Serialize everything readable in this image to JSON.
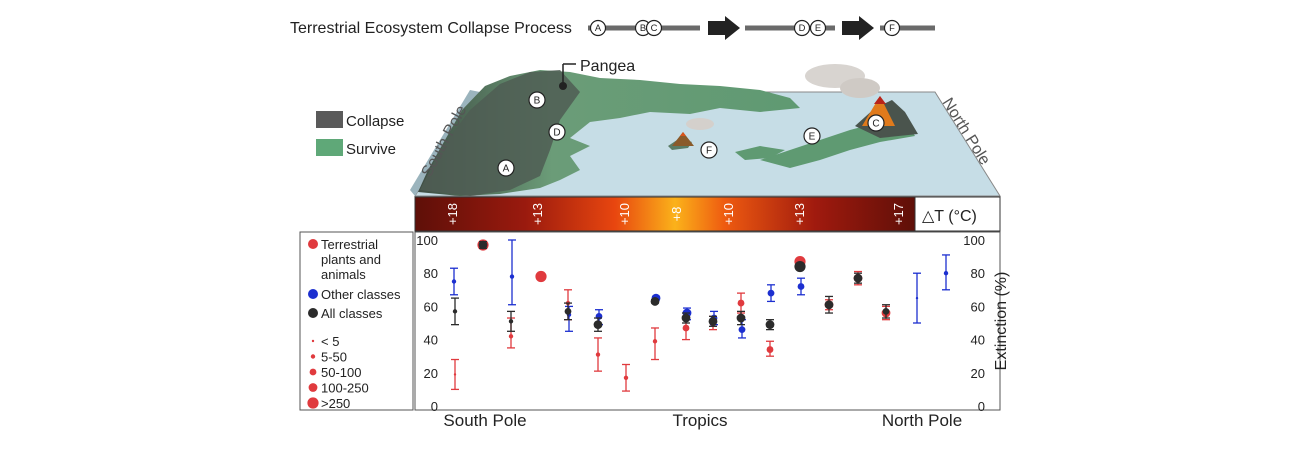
{
  "process": {
    "title": "Terrestrial Ecosystem Collapse Process",
    "stages": [
      {
        "labels": [
          "A"
        ]
      },
      {
        "labels": [
          "B",
          "C"
        ]
      },
      {
        "labels": [
          "D",
          "E"
        ]
      },
      {
        "labels": [
          "F"
        ]
      }
    ]
  },
  "map": {
    "pangea_label": "Pangea",
    "south_pole_label": "South Pole",
    "north_pole_label": "North Pole",
    "markers": [
      "A",
      "B",
      "C",
      "D",
      "E",
      "F"
    ],
    "legend": [
      {
        "label": "Collapse",
        "color": "#5a5a5a"
      },
      {
        "label": "Survive",
        "color": "#5fa878"
      }
    ],
    "colors": {
      "ocean": "#c6dde6",
      "land": "#6a9a78",
      "collapse_land": "#4d5b52"
    }
  },
  "temperature_bar": {
    "unit_label": "△T (°C)",
    "ticks": [
      "+18",
      "+13",
      "+10",
      "+8",
      "+10",
      "+13",
      "+17"
    ]
  },
  "chart_data": {
    "type": "scatter",
    "ylabel": "Extinction (%)",
    "ylim": [
      0,
      100
    ],
    "y_ticks": [
      0,
      20,
      40,
      60,
      80,
      100
    ],
    "x_ticks": [
      "South Pole",
      "Tropics",
      "North Pole"
    ],
    "grid": false,
    "legend_position": "left",
    "size_legend": [
      "< 5",
      "5-50",
      "50-100",
      "100-250",
      ">250"
    ],
    "series": [
      {
        "name": "Terrestrial plants and animals",
        "color": "#e03a3e",
        "points": [
          {
            "x": 1,
            "y": 19,
            "lo": 10,
            "hi": 28,
            "size": "< 5"
          },
          {
            "x": 2,
            "y": 97,
            "lo": 96,
            "hi": 98,
            "size": ">250"
          },
          {
            "x": 3,
            "y": 42,
            "lo": 35,
            "hi": 53,
            "size": "5-50"
          },
          {
            "x": 4,
            "y": 78,
            "lo": 77,
            "hi": 79,
            "size": ">250"
          },
          {
            "x": 5,
            "y": 62,
            "lo": 52,
            "hi": 70,
            "size": "5-50"
          },
          {
            "x": 6,
            "y": 31,
            "lo": 21,
            "hi": 41,
            "size": "5-50"
          },
          {
            "x": 7,
            "y": 17,
            "lo": 9,
            "hi": 25,
            "size": "5-50"
          },
          {
            "x": 8,
            "y": 39,
            "lo": 28,
            "hi": 47,
            "size": "5-50"
          },
          {
            "x": 9,
            "y": 47,
            "lo": 40,
            "hi": 54,
            "size": "50-100"
          },
          {
            "x": 10,
            "y": 50,
            "lo": 46,
            "hi": 54,
            "size": "50-100"
          },
          {
            "x": 11,
            "y": 62,
            "lo": 56,
            "hi": 68,
            "size": "50-100"
          },
          {
            "x": 12,
            "y": 34,
            "lo": 30,
            "hi": 39,
            "size": "50-100"
          },
          {
            "x": 13,
            "y": 87,
            "lo": 85,
            "hi": 89,
            "size": ">250"
          },
          {
            "x": 14,
            "y": 61,
            "lo": 58,
            "hi": 64,
            "size": "100-250"
          },
          {
            "x": 15,
            "y": 77,
            "lo": 73,
            "hi": 81,
            "size": "100-250"
          },
          {
            "x": 16,
            "y": 56,
            "lo": 52,
            "hi": 60,
            "size": "100-250"
          }
        ]
      },
      {
        "name": "Other classes",
        "color": "#1c2fd0",
        "points": [
          {
            "x": 1,
            "y": 75,
            "lo": 67,
            "hi": 83,
            "size": "5-50"
          },
          {
            "x": 2,
            "y": 78,
            "lo": 61,
            "hi": 100,
            "size": "5-50"
          },
          {
            "x": 3,
            "y": 55,
            "lo": 45,
            "hi": 60,
            "size": "5-50"
          },
          {
            "x": 4,
            "y": 54,
            "lo": 49,
            "hi": 58,
            "size": "50-100"
          },
          {
            "x": 5,
            "y": 65,
            "lo": 64,
            "hi": 66,
            "size": "100-250"
          },
          {
            "x": 6,
            "y": 56,
            "lo": 52,
            "hi": 59,
            "size": "100-250"
          },
          {
            "x": 7,
            "y": 53,
            "lo": 49,
            "hi": 57,
            "size": "50-100"
          },
          {
            "x": 8,
            "y": 46,
            "lo": 41,
            "hi": 52,
            "size": "50-100"
          },
          {
            "x": 9,
            "y": 68,
            "lo": 63,
            "hi": 73,
            "size": "50-100"
          },
          {
            "x": 10,
            "y": 72,
            "lo": 67,
            "hi": 77,
            "size": "50-100"
          },
          {
            "x": 11,
            "y": 65,
            "lo": 50,
            "hi": 80,
            "size": "< 5"
          },
          {
            "x": 12,
            "y": 80,
            "lo": 70,
            "hi": 91,
            "size": "5-50"
          }
        ]
      },
      {
        "name": "All classes",
        "color": "#2b2b2b",
        "points": [
          {
            "x": 1,
            "y": 57,
            "lo": 49,
            "hi": 65,
            "size": "5-50"
          },
          {
            "x": 2,
            "y": 97,
            "lo": 95,
            "hi": 99,
            "size": "100-250"
          },
          {
            "x": 3,
            "y": 51,
            "lo": 45,
            "hi": 57,
            "size": "5-50"
          },
          {
            "x": 4,
            "y": 57,
            "lo": 52,
            "hi": 62,
            "size": "50-100"
          },
          {
            "x": 5,
            "y": 49,
            "lo": 45,
            "hi": 53,
            "size": "100-250"
          },
          {
            "x": 6,
            "y": 63,
            "lo": 62,
            "hi": 64,
            "size": "100-250"
          },
          {
            "x": 7,
            "y": 53,
            "lo": 50,
            "hi": 56,
            "size": "100-250"
          },
          {
            "x": 8,
            "y": 51,
            "lo": 48,
            "hi": 54,
            "size": "100-250"
          },
          {
            "x": 9,
            "y": 53,
            "lo": 49,
            "hi": 57,
            "size": "100-250"
          },
          {
            "x": 10,
            "y": 49,
            "lo": 46,
            "hi": 52,
            "size": "100-250"
          },
          {
            "x": 11,
            "y": 84,
            "lo": 82,
            "hi": 86,
            "size": ">250"
          },
          {
            "x": 12,
            "y": 61,
            "lo": 56,
            "hi": 66,
            "size": "100-250"
          },
          {
            "x": 13,
            "y": 77,
            "lo": 74,
            "hi": 80,
            "size": "100-250"
          },
          {
            "x": 14,
            "y": 57,
            "lo": 53,
            "hi": 61,
            "size": "50-100"
          }
        ]
      }
    ]
  }
}
